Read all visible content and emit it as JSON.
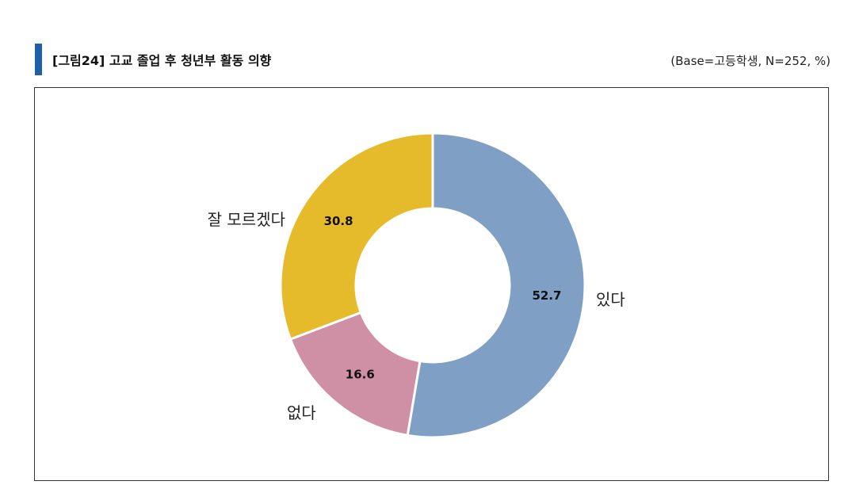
{
  "header": {
    "title": "[그림24] 고교 졸업 후 청년부 활동 의향",
    "base_note": "(Base=고등학생,  N=252,  %)"
  },
  "chart_data": {
    "type": "pie",
    "variant": "donut",
    "title": "",
    "unit": "%",
    "categories": [
      "있다",
      "없다",
      "잘 모르겠다"
    ],
    "values": [
      52.7,
      16.6,
      30.8
    ],
    "value_labels": [
      "52.7",
      "16.6",
      "30.8"
    ],
    "colors": [
      "#7f9fc4",
      "#cf8fa5",
      "#e5bb2b"
    ],
    "start": "12 o'clock",
    "direction": "clockwise",
    "legend": "none"
  }
}
